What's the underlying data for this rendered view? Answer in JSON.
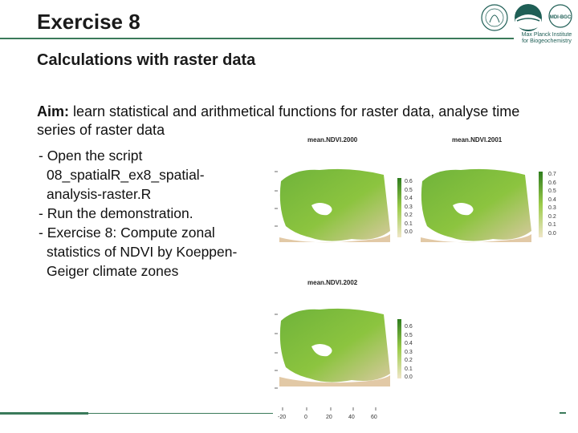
{
  "slide": {
    "title": "Exercise 8",
    "subtitle": "Calculations with raster data",
    "aim_label": "Aim:",
    "aim_text": " learn statistical and arithmetical functions for raster data, analyse time series of raster data",
    "bullets": [
      "- Open the script 08_spatialR_ex8_spatial-analysis-raster.R",
      "- Run the demonstration.",
      "- Exercise 8: Compute zonal statistics of NDVI by Koeppen-Geiger climate zones"
    ]
  },
  "logo": {
    "text1": "Max Planck Institute",
    "text2": "for Biogeochemistry",
    "badge": "MDI-BGC"
  },
  "maps": [
    {
      "title": "mean.NDVI.2000",
      "legend": [
        "0.6",
        "0.5",
        "0.4",
        "0.3",
        "0.2",
        "0.1",
        "0.0"
      ]
    },
    {
      "title": "mean.NDVI.2001",
      "legend": [
        "0.7",
        "0.6",
        "0.5",
        "0.4",
        "0.3",
        "0.2",
        "0.1",
        "0.0"
      ]
    },
    {
      "title": "mean.NDVI.2002",
      "legend": [
        "0.6",
        "0.5",
        "0.4",
        "0.3",
        "0.2",
        "0.1",
        "0.0"
      ]
    }
  ],
  "x_ticks": [
    "-20",
    "0",
    "20",
    "40",
    "60"
  ],
  "colors": {
    "accent": "#3a7a5a"
  }
}
